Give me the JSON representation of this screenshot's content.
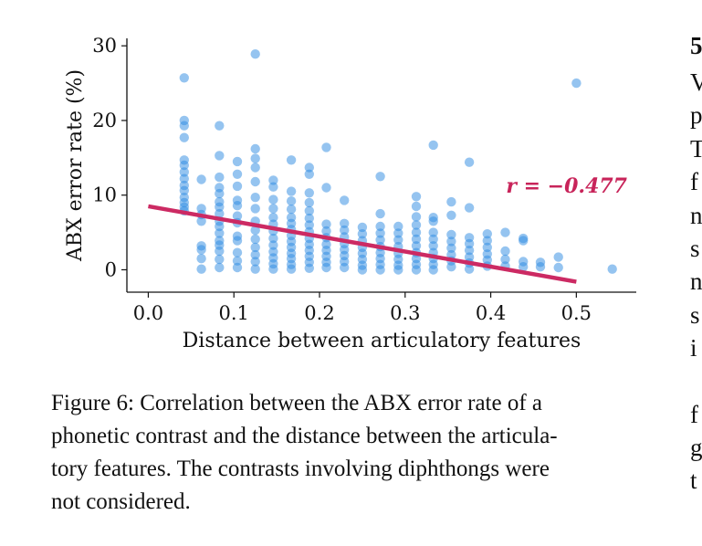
{
  "colors": {
    "points": "#2b8ae2",
    "regression": "#cc2a63",
    "annotation": "#c8245a",
    "axis": "#111111"
  },
  "chart_data": {
    "type": "scatter",
    "xlabel": "Distance between articulatory features",
    "ylabel": "ABX error rate (%)",
    "xlim": [
      -0.025,
      0.57
    ],
    "ylim": [
      -3,
      31
    ],
    "xticks": [
      0.0,
      0.1,
      0.2,
      0.3,
      0.4,
      0.5
    ],
    "xtick_labels": [
      "0.0",
      "0.1",
      "0.2",
      "0.3",
      "0.4",
      "0.5"
    ],
    "yticks": [
      0,
      10,
      20,
      30
    ],
    "ytick_labels": [
      "0",
      "10",
      "20",
      "30"
    ],
    "grid": false,
    "annotation": "r = −0.477",
    "regression": {
      "x": [
        0.0,
        0.5
      ],
      "y": [
        8.5,
        -1.6
      ]
    },
    "columns": [
      {
        "x": 0.042,
        "y": [
          25.7,
          20.0,
          19.3,
          17.7,
          14.7,
          14.0,
          13.1,
          12.2,
          11.3,
          10.6,
          9.7,
          9.0,
          8.4,
          7.9
        ]
      },
      {
        "x": 0.062,
        "y": [
          12.1,
          8.2,
          7.4,
          6.5,
          3.2,
          2.7,
          1.5,
          0.1
        ]
      },
      {
        "x": 0.083,
        "y": [
          19.3,
          15.3,
          12.4,
          11.0,
          10.2,
          9.1,
          8.4,
          7.5,
          6.5,
          5.8,
          4.9,
          3.9,
          3.3,
          2.5,
          1.4,
          0.3
        ]
      },
      {
        "x": 0.104,
        "y": [
          14.5,
          12.8,
          11.2,
          9.3,
          8.6,
          7.2,
          6.3,
          4.5,
          3.9,
          2.3,
          1.2,
          0.3
        ]
      },
      {
        "x": 0.125,
        "y": [
          28.9,
          16.2,
          14.9,
          13.7,
          11.8,
          9.7,
          8.2,
          6.5,
          5.3,
          4.1,
          3.0,
          2.0,
          1.1,
          0.1
        ]
      },
      {
        "x": 0.146,
        "y": [
          12.0,
          11.1,
          9.4,
          8.2,
          7.0,
          6.1,
          5.2,
          4.2,
          3.3,
          2.4,
          1.6,
          0.8,
          0.1
        ]
      },
      {
        "x": 0.167,
        "y": [
          14.7,
          10.5,
          9.2,
          8.1,
          7.0,
          6.2,
          5.4,
          4.6,
          3.8,
          3.0,
          2.2,
          1.5,
          0.7,
          0.1
        ]
      },
      {
        "x": 0.188,
        "y": [
          13.7,
          12.8,
          10.3,
          9.0,
          7.9,
          6.9,
          6.0,
          5.1,
          4.2,
          3.4,
          2.6,
          1.8,
          1.0,
          0.2
        ]
      },
      {
        "x": 0.208,
        "y": [
          16.4,
          11.0,
          6.1,
          5.2,
          4.3,
          3.4,
          2.6,
          1.8,
          1.0,
          0.3
        ]
      },
      {
        "x": 0.229,
        "y": [
          9.3,
          6.2,
          5.3,
          4.4,
          3.5,
          2.7,
          1.9,
          1.1,
          0.3
        ]
      },
      {
        "x": 0.25,
        "y": [
          5.7,
          4.8,
          3.9,
          3.0,
          2.2,
          1.4,
          0.6,
          0.0
        ]
      },
      {
        "x": 0.271,
        "y": [
          12.5,
          7.5,
          5.8,
          4.9,
          4.0,
          3.1,
          2.3,
          1.5,
          0.7,
          0.0
        ]
      },
      {
        "x": 0.292,
        "y": [
          5.8,
          4.9,
          4.0,
          3.1,
          2.2,
          1.4,
          0.6,
          0.0
        ]
      },
      {
        "x": 0.313,
        "y": [
          9.8,
          8.5,
          7.1,
          6.0,
          5.0,
          4.1,
          3.2,
          2.3,
          1.5,
          0.7,
          0.0
        ]
      },
      {
        "x": 0.333,
        "y": [
          16.7,
          7.0,
          6.5,
          5.0,
          4.1,
          3.2,
          2.3,
          1.5,
          0.7,
          0.0
        ]
      },
      {
        "x": 0.354,
        "y": [
          9.1,
          7.3,
          4.7,
          3.8,
          2.9,
          2.0,
          1.2,
          0.4
        ]
      },
      {
        "x": 0.375,
        "y": [
          14.4,
          8.3,
          4.3,
          3.5,
          2.6,
          1.7,
          0.9,
          0.1
        ]
      },
      {
        "x": 0.396,
        "y": [
          4.8,
          3.9,
          3.0,
          2.1,
          1.3,
          0.5
        ]
      },
      {
        "x": 0.417,
        "y": [
          5.0,
          2.5,
          1.4,
          0.5
        ]
      },
      {
        "x": 0.438,
        "y": [
          4.2,
          3.9,
          1.1,
          0.4
        ]
      },
      {
        "x": 0.458,
        "y": [
          1.0,
          0.4
        ]
      },
      {
        "x": 0.479,
        "y": [
          1.7,
          0.3
        ]
      },
      {
        "x": 0.5,
        "y": [
          25.0
        ]
      },
      {
        "x": 0.542,
        "y": [
          0.1
        ]
      }
    ]
  },
  "caption": {
    "lines": [
      "Figure 6: Correlation between the ABX error rate of a",
      "phonetic contrast and the distance between the articula-",
      "tory features. The contrasts involving diphthongs were",
      "not considered."
    ]
  },
  "side_column": {
    "heading": "5",
    "lines": [
      "V",
      "p",
      "T",
      "f",
      "n",
      "s",
      "n",
      "s",
      "i"
    ],
    "lines_after_gap": [
      "f",
      "g",
      "t"
    ]
  }
}
